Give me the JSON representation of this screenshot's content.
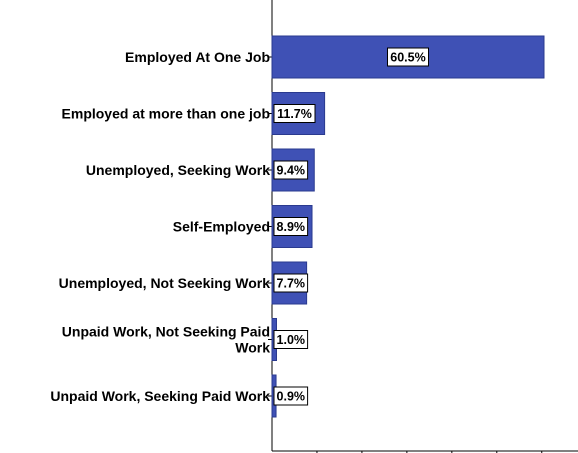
{
  "chart_data": {
    "type": "bar",
    "orientation": "horizontal",
    "categories": [
      "Employed At One Job",
      "Employed at more than one job",
      "Unemployed, Seeking Work",
      "Self-Employed",
      "Unemployed, Not Seeking Work",
      "Unpaid Work, Not Seeking Paid Work",
      "Unpaid Work, Seeking Paid Work"
    ],
    "category_lines": [
      [
        "Employed At One Job"
      ],
      [
        "Employed at more than one job"
      ],
      [
        "Unemployed, Seeking Work"
      ],
      [
        "Self-Employed"
      ],
      [
        "Unemployed, Not Seeking Work"
      ],
      [
        "Unpaid Work, Not Seeking Paid",
        "Work"
      ],
      [
        "Unpaid Work, Seeking Paid Work"
      ]
    ],
    "values": [
      60.5,
      11.7,
      9.4,
      8.9,
      7.7,
      1.0,
      0.9
    ],
    "data_labels": [
      "60.5%",
      "11.7%",
      "9.4%",
      "8.9%",
      "7.7%",
      "1.0%",
      "0.9%"
    ],
    "xlim": [
      0,
      70
    ],
    "title": "",
    "xlabel": "",
    "ylabel": "",
    "grid": false,
    "legend": "none",
    "colors": {
      "bar": "#3F51B5",
      "bar_edge": "#2A3A8F"
    }
  }
}
